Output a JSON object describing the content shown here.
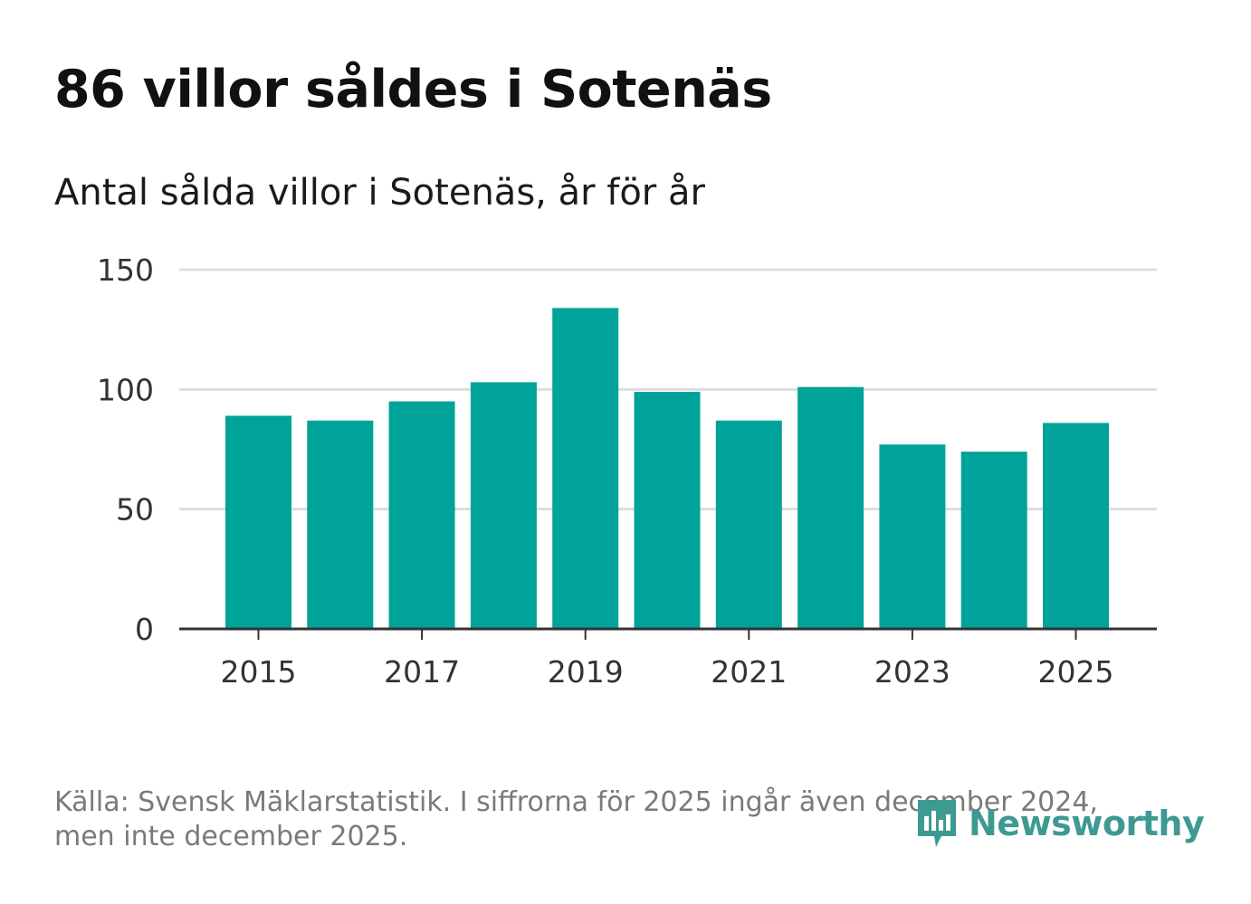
{
  "chart_data": {
    "type": "bar",
    "title": "86 villor såldes i Sotenäs",
    "subtitle": "Antal sålda villor i Sotenäs, år för år",
    "categories": [
      "2015",
      "2016",
      "2017",
      "2018",
      "2019",
      "2020",
      "2021",
      "2022",
      "2023",
      "2024",
      "2025"
    ],
    "values": [
      89,
      87,
      95,
      103,
      134,
      99,
      87,
      101,
      77,
      74,
      86
    ],
    "x_tick_labels": [
      "2015",
      "2017",
      "2019",
      "2021",
      "2023",
      "2025"
    ],
    "y_ticks": [
      "0",
      "50",
      "100",
      "150"
    ],
    "ylim": [
      0,
      150
    ],
    "grid": true,
    "bar_color": "#00a39a",
    "grid_color": "#dddddd",
    "axis_color": "#333333"
  },
  "footer": {
    "source": "Källa: Svensk Mäklarstatistik. I siffrorna för 2025 ingår även december 2024, men inte december 2025."
  },
  "logo": {
    "text": "Newsworthy",
    "icon": "newsworthy-chart-icon",
    "color": "#3d9a92"
  }
}
